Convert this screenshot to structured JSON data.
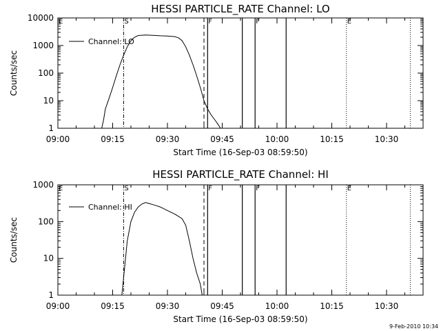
{
  "chart_data": [
    {
      "type": "line",
      "title": "HESSI PARTICLE_RATE Channel: LO",
      "xlabel": "Start Time (16-Sep-03 08:59:50)",
      "ylabel": "Counts/sec",
      "yscale": "log",
      "ylim": [
        1,
        10000
      ],
      "xlim": [
        "09:00",
        "10:40"
      ],
      "x_ticks": [
        "09:00",
        "09:15",
        "09:30",
        "09:45",
        "10:00",
        "10:15",
        "10:30"
      ],
      "y_ticks": [
        "1",
        "10",
        "100",
        "1000",
        "10000"
      ],
      "legend": "top-left",
      "series": [
        {
          "name": "Channel: LO",
          "x": [
            "09:12",
            "09:12.5",
            "09:13",
            "09:14",
            "09:15",
            "09:16",
            "09:17",
            "09:18",
            "09:19",
            "09:20",
            "09:21",
            "09:22",
            "09:24",
            "09:26",
            "09:28",
            "09:30",
            "09:32",
            "09:33",
            "09:34",
            "09:35",
            "09:36",
            "09:37",
            "09:38",
            "09:39",
            "09:40",
            "09:41",
            "09:42",
            "09:43",
            "09:44",
            "09:44.5"
          ],
          "values": [
            1,
            2,
            5,
            12,
            30,
            80,
            200,
            450,
            900,
            1500,
            2000,
            2300,
            2400,
            2350,
            2250,
            2200,
            2100,
            1900,
            1500,
            900,
            450,
            200,
            80,
            30,
            10,
            5,
            3,
            2,
            1.3,
            1
          ]
        }
      ],
      "markers": [
        {
          "label": "S",
          "time": "09:18",
          "style": "dash-dot"
        },
        {
          "label": "",
          "time": "09:40",
          "style": "dashed"
        },
        {
          "label": "F",
          "time": "09:41",
          "style": "solid"
        },
        {
          "label": "",
          "time": "09:50.5",
          "style": "solid"
        },
        {
          "label": "F",
          "time": "09:54",
          "style": "solid"
        },
        {
          "label": "",
          "time": "10:02.5",
          "style": "solid"
        },
        {
          "label": "E",
          "time": "10:19",
          "style": "dotted"
        },
        {
          "label": "",
          "time": "10:36.5",
          "style": "dotted"
        }
      ],
      "corner_label": "E"
    },
    {
      "type": "line",
      "title": "HESSI PARTICLE_RATE Channel: HI",
      "xlabel": "Start Time (16-Sep-03 08:59:50)",
      "ylabel": "Counts/sec",
      "yscale": "log",
      "ylim": [
        1,
        1000
      ],
      "xlim": [
        "09:00",
        "10:40"
      ],
      "x_ticks": [
        "09:00",
        "09:15",
        "09:30",
        "09:45",
        "10:00",
        "10:15",
        "10:30"
      ],
      "y_ticks": [
        "1",
        "10",
        "100",
        "1000"
      ],
      "legend": "top-left",
      "series": [
        {
          "name": "Channel: HI",
          "x": [
            "09:17.5",
            "09:18",
            "09:19",
            "09:20",
            "09:21",
            "09:22",
            "09:23",
            "09:24",
            "09:25",
            "09:26",
            "09:27",
            "09:28",
            "09:30",
            "09:32",
            "09:34",
            "09:35",
            "09:36",
            "09:37",
            "09:38",
            "09:39",
            "09:39.5"
          ],
          "values": [
            1,
            3,
            30,
            100,
            180,
            250,
            300,
            330,
            310,
            290,
            270,
            250,
            200,
            160,
            120,
            80,
            30,
            10,
            4,
            2,
            1
          ]
        }
      ],
      "markers": [
        {
          "label": "S",
          "time": "09:18",
          "style": "dash-dot"
        },
        {
          "label": "",
          "time": "09:40",
          "style": "dashed"
        },
        {
          "label": "F",
          "time": "09:41",
          "style": "solid"
        },
        {
          "label": "",
          "time": "09:50.5",
          "style": "solid"
        },
        {
          "label": "F",
          "time": "09:54",
          "style": "solid"
        },
        {
          "label": "",
          "time": "10:02.5",
          "style": "solid"
        },
        {
          "label": "E",
          "time": "10:19",
          "style": "dotted"
        },
        {
          "label": "",
          "time": "10:36.5",
          "style": "dotted"
        }
      ],
      "corner_label": "E"
    }
  ],
  "footer": {
    "date_stamp": "9-Feb-2010 10:34"
  }
}
